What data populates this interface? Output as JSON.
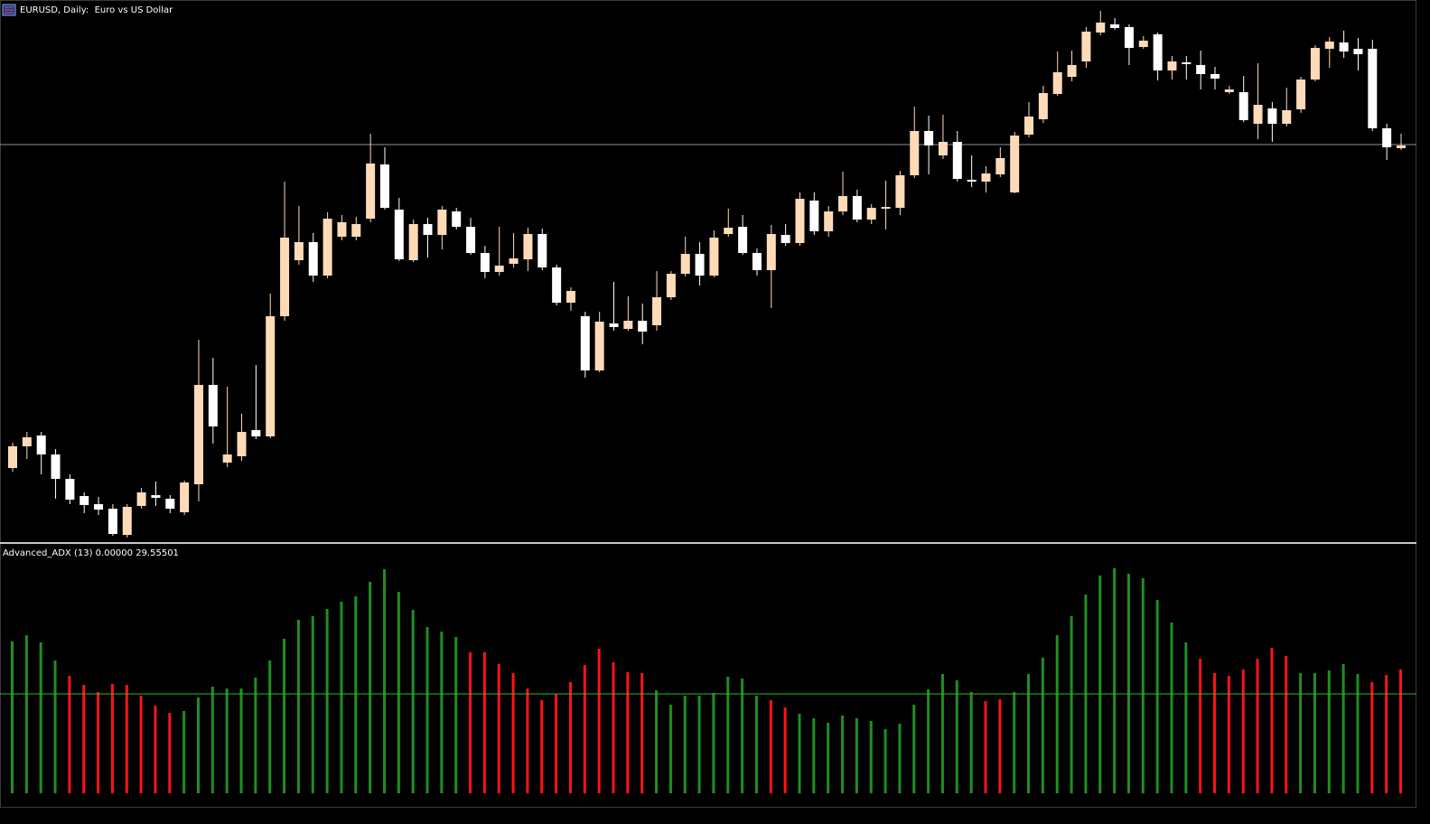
{
  "chart_data": [
    {
      "type": "candlestick",
      "title": "EURUSD, Daily:  Euro vs US Dollar",
      "up_color": "#ffdab9",
      "down_color": "#ffffff",
      "hline": 440,
      "hline_color": "#8c929c",
      "ylim": [
        0,
        600
      ],
      "open": [
        82,
        106,
        118,
        97,
        70,
        51,
        42,
        37,
        8,
        40,
        52,
        48,
        33,
        64,
        174,
        88,
        95,
        124,
        117,
        250,
        312,
        332,
        295,
        338,
        338,
        358,
        418,
        368,
        312,
        352,
        340,
        366,
        349,
        320,
        299,
        308,
        313,
        341,
        304,
        265,
        250,
        190,
        242,
        236,
        245,
        240,
        271,
        297,
        319,
        295,
        341,
        349,
        320,
        301,
        340,
        331,
        378,
        344,
        366,
        383,
        357,
        369,
        370,
        406,
        455,
        428,
        443,
        401,
        399,
        407,
        387,
        451,
        468,
        496,
        515,
        532,
        564,
        573,
        570,
        548,
        562,
        522,
        531,
        528,
        518,
        498,
        498,
        463,
        480,
        463,
        479,
        512,
        546,
        553,
        546,
        546,
        458,
        436
      ],
      "high": [
        110,
        122,
        122,
        103,
        75,
        55,
        50,
        42,
        42,
        60,
        67,
        52,
        68,
        224,
        204,
        172,
        142,
        196,
        275,
        399,
        372,
        342,
        365,
        362,
        360,
        452,
        437,
        381,
        357,
        359,
        372,
        370,
        359,
        328,
        349,
        342,
        348,
        347,
        307,
        282,
        255,
        255,
        288,
        272,
        264,
        300,
        300,
        338,
        332,
        345,
        369,
        362,
        325,
        351,
        352,
        387,
        387,
        372,
        410,
        390,
        374,
        400,
        411,
        482,
        472,
        473,
        455,
        428,
        416,
        437,
        454,
        487,
        505,
        543,
        544,
        570,
        588,
        580,
        573,
        560,
        564,
        538,
        538,
        544,
        526,
        505,
        516,
        530,
        487,
        503,
        515,
        550,
        559,
        566,
        558,
        556,
        463,
        452
      ],
      "low": [
        78,
        92,
        75,
        48,
        42,
        32,
        30,
        7,
        5,
        37,
        40,
        32,
        30,
        45,
        109,
        83,
        90,
        114,
        115,
        245,
        307,
        288,
        292,
        334,
        334,
        354,
        368,
        311,
        310,
        315,
        324,
        346,
        318,
        292,
        295,
        304,
        300,
        301,
        262,
        256,
        182,
        188,
        234,
        234,
        219,
        234,
        268,
        294,
        284,
        293,
        338,
        318,
        295,
        259,
        328,
        328,
        340,
        338,
        362,
        354,
        352,
        346,
        362,
        403,
        407,
        424,
        399,
        393,
        387,
        404,
        386,
        448,
        464,
        494,
        510,
        525,
        561,
        567,
        528,
        546,
        511,
        512,
        512,
        501,
        501,
        496,
        465,
        446,
        443,
        460,
        475,
        510,
        525,
        536,
        522,
        455,
        423,
        434
      ],
      "close": [
        106,
        116,
        97,
        70,
        47,
        41,
        36,
        9,
        39,
        55,
        49,
        37,
        66,
        174,
        128,
        97,
        122,
        117,
        250,
        337,
        332,
        295,
        358,
        354,
        352,
        419,
        370,
        313,
        352,
        340,
        368,
        349,
        320,
        299,
        306,
        314,
        341,
        304,
        265,
        278,
        190,
        244,
        238,
        245,
        233,
        271,
        297,
        319,
        295,
        337,
        348,
        320,
        301,
        341,
        331,
        380,
        344,
        366,
        383,
        357,
        370,
        371,
        406,
        455,
        439,
        443,
        402,
        399,
        408,
        425,
        450,
        471,
        497,
        520,
        528,
        565,
        575,
        569,
        547,
        555,
        522,
        532,
        529,
        518,
        513,
        501,
        467,
        484,
        463,
        478,
        512,
        547,
        554,
        543,
        540,
        458,
        437,
        439
      ]
    },
    {
      "type": "bar",
      "title": "Advanced_ADX (13) 0.00000 29.55501",
      "ylim": [
        0,
        55
      ],
      "hline": 22,
      "hline_color": "#2fb52f",
      "values": [
        33.6,
        35,
        33.4,
        29.4,
        26,
        24,
        22.4,
        24.2,
        24,
        21.6,
        19.4,
        17.8,
        18.2,
        21.2,
        23.6,
        23.2,
        23.2,
        25.6,
        29.4,
        34.2,
        38.4,
        39.2,
        40.8,
        42.4,
        43.6,
        46.8,
        49.6,
        44.6,
        40.6,
        36.8,
        35.8,
        34.6,
        31.2,
        31.2,
        28.6,
        26.6,
        23.2,
        20.6,
        22,
        24.6,
        28.4,
        32,
        29,
        26.8,
        26.6,
        22.8,
        19.6,
        21.6,
        21.6,
        22.2,
        25.8,
        25.4,
        21.6,
        20.6,
        19,
        17.6,
        16.6,
        15.6,
        17.2,
        16.6,
        16,
        14.2,
        15.4,
        19.6,
        23,
        26.4,
        25,
        22.4,
        20.4,
        20.8,
        22.4,
        26.4,
        30,
        35,
        39.2,
        44,
        48.2,
        49.8,
        48.6,
        47.6,
        42.8,
        37.8,
        33.4,
        29.8,
        26.6,
        26,
        27.4,
        29.8,
        32.2,
        30.4,
        26.6,
        26.6,
        27.2,
        28.6,
        26.4,
        24.6,
        26.2,
        27.4
      ],
      "colors": [
        "#1f8f1f",
        "#1f8f1f",
        "#1f8f1f",
        "#1f8f1f",
        "#ff1414",
        "#ff1414",
        "#ff1414",
        "#ff1414",
        "#ff1414",
        "#ff1414",
        "#ff1414",
        "#ff1414",
        "#1f8f1f",
        "#1f8f1f",
        "#1f8f1f",
        "#1f8f1f",
        "#1f8f1f",
        "#1f8f1f",
        "#1f8f1f",
        "#1f8f1f",
        "#1f8f1f",
        "#1f8f1f",
        "#1f8f1f",
        "#1f8f1f",
        "#1f8f1f",
        "#1f8f1f",
        "#1f8f1f",
        "#1f8f1f",
        "#1f8f1f",
        "#1f8f1f",
        "#1f8f1f",
        "#1f8f1f",
        "#ff1414",
        "#ff1414",
        "#ff1414",
        "#ff1414",
        "#ff1414",
        "#ff1414",
        "#ff1414",
        "#ff1414",
        "#ff1414",
        "#ff1414",
        "#ff1414",
        "#ff1414",
        "#ff1414",
        "#1f8f1f",
        "#1f8f1f",
        "#1f8f1f",
        "#1f8f1f",
        "#1f8f1f",
        "#1f8f1f",
        "#1f8f1f",
        "#1f8f1f",
        "#ff1414",
        "#ff1414",
        "#1f8f1f",
        "#1f8f1f",
        "#1f8f1f",
        "#1f8f1f",
        "#1f8f1f",
        "#1f8f1f",
        "#1f8f1f",
        "#1f8f1f",
        "#1f8f1f",
        "#1f8f1f",
        "#1f8f1f",
        "#1f8f1f",
        "#1f8f1f",
        "#ff1414",
        "#ff1414",
        "#1f8f1f",
        "#1f8f1f",
        "#1f8f1f",
        "#1f8f1f",
        "#1f8f1f",
        "#1f8f1f",
        "#1f8f1f",
        "#1f8f1f",
        "#1f8f1f",
        "#1f8f1f",
        "#1f8f1f",
        "#1f8f1f",
        "#1f8f1f",
        "#ff1414",
        "#ff1414",
        "#ff1414",
        "#ff1414",
        "#ff1414",
        "#ff1414",
        "#ff1414",
        "#1f8f1f",
        "#1f8f1f",
        "#1f8f1f",
        "#1f8f1f",
        "#1f8f1f",
        "#ff1414",
        "#ff1414",
        "#ff1414"
      ]
    }
  ]
}
